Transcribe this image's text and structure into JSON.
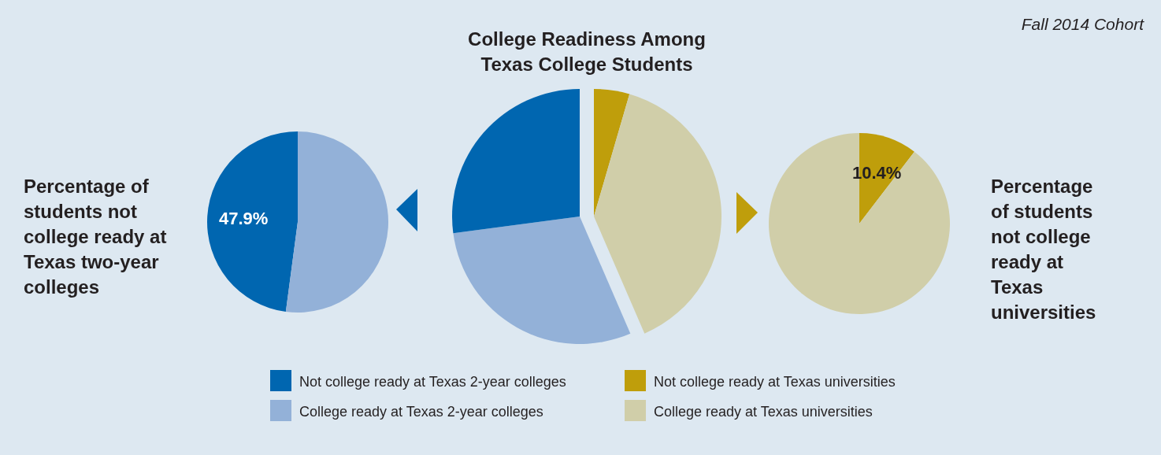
{
  "chart_data": [
    {
      "type": "pie",
      "title": "Percentage of students not college ready at Texas two-year colleges",
      "categories": [
        null,
        null
      ],
      "values": [
        47.9,
        52.1
      ],
      "colors": [
        "#0066b0",
        "#93b1d8"
      ],
      "value_labels": [
        "47.9%",
        null
      ],
      "legend": false
    },
    {
      "type": "pie",
      "title": "College Readiness Among Texas College Students",
      "annotations": [
        "Fall 2014 Cohort"
      ],
      "categories": [
        "Not college ready at Texas universities",
        "College ready at Texas universities",
        "College ready at Texas 2-year colleges",
        "Not college ready at Texas 2-year colleges"
      ],
      "values": [
        4.5,
        39,
        29.4,
        27.1
      ],
      "colors": [
        "#bf9e0b",
        "#d0cea9",
        "#93b1d8",
        "#0066b0"
      ],
      "legend": "bottom"
    },
    {
      "type": "pie",
      "title": "Percentage of students not college ready at Texas universities",
      "categories": [
        null,
        null
      ],
      "values": [
        10.4,
        89.6
      ],
      "colors": [
        "#bf9e0b",
        "#d0cea9"
      ],
      "value_labels": [
        "10.4%",
        null
      ],
      "legend": false
    }
  ]
}
